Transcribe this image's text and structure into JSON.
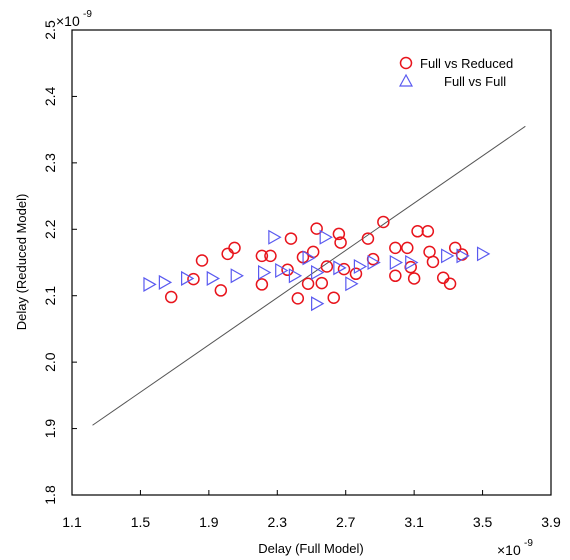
{
  "chart_data": {
    "type": "scatter",
    "xlabel": "Delay (Full Model)",
    "ylabel": "Delay (Reduced Model)",
    "xlim": [
      1.1,
      3.9
    ],
    "ylim": [
      1.8,
      2.5
    ],
    "xticks": [
      "1.1",
      "1.5",
      "1.9",
      "2.3",
      "2.7",
      "3.1",
      "3.5",
      "3.9"
    ],
    "yticks": [
      "1.8",
      "1.9",
      "2.0",
      "2.1",
      "2.2",
      "2.3",
      "2.4",
      "2.5"
    ],
    "x_multiplier": {
      "base": "×10",
      "exp": "-9"
    },
    "y_multiplier": {
      "base": "×10",
      "exp": "-9"
    },
    "grid": false,
    "legend_position": "top-right",
    "reference_line": {
      "x": [
        1.22,
        3.75
      ],
      "y": [
        1.905,
        2.355
      ]
    },
    "series": [
      {
        "name": "Full vs Reduced",
        "marker": "circle",
        "color": "#e8141c",
        "points": [
          [
            1.68,
            2.098
          ],
          [
            1.81,
            2.125
          ],
          [
            1.86,
            2.153
          ],
          [
            1.97,
            2.108
          ],
          [
            2.01,
            2.163
          ],
          [
            2.05,
            2.172
          ],
          [
            2.21,
            2.117
          ],
          [
            2.21,
            2.16
          ],
          [
            2.26,
            2.16
          ],
          [
            2.36,
            2.139
          ],
          [
            2.38,
            2.186
          ],
          [
            2.42,
            2.096
          ],
          [
            2.45,
            2.158
          ],
          [
            2.48,
            2.118
          ],
          [
            2.51,
            2.166
          ],
          [
            2.53,
            2.201
          ],
          [
            2.56,
            2.119
          ],
          [
            2.59,
            2.144
          ],
          [
            2.63,
            2.097
          ],
          [
            2.66,
            2.193
          ],
          [
            2.67,
            2.18
          ],
          [
            2.69,
            2.14
          ],
          [
            2.76,
            2.133
          ],
          [
            2.83,
            2.186
          ],
          [
            2.86,
            2.155
          ],
          [
            2.92,
            2.211
          ],
          [
            2.99,
            2.13
          ],
          [
            2.99,
            2.172
          ],
          [
            3.06,
            2.172
          ],
          [
            3.08,
            2.143
          ],
          [
            3.12,
            2.197
          ],
          [
            3.1,
            2.126
          ],
          [
            3.18,
            2.197
          ],
          [
            3.19,
            2.166
          ],
          [
            3.21,
            2.151
          ],
          [
            3.27,
            2.127
          ],
          [
            3.31,
            2.118
          ],
          [
            3.34,
            2.172
          ],
          [
            3.38,
            2.162
          ]
        ]
      },
      {
        "name": "Full vs Full",
        "marker": "triangle",
        "color": "#5a5af0",
        "points": [
          [
            1.55,
            2.117
          ],
          [
            1.64,
            2.12
          ],
          [
            1.77,
            2.126
          ],
          [
            1.92,
            2.126
          ],
          [
            2.06,
            2.13
          ],
          [
            2.22,
            2.135
          ],
          [
            2.28,
            2.188
          ],
          [
            2.32,
            2.138
          ],
          [
            2.4,
            2.13
          ],
          [
            2.48,
            2.157
          ],
          [
            2.53,
            2.088
          ],
          [
            2.53,
            2.135
          ],
          [
            2.58,
            2.188
          ],
          [
            2.66,
            2.142
          ],
          [
            2.73,
            2.118
          ],
          [
            2.78,
            2.144
          ],
          [
            2.86,
            2.15
          ],
          [
            2.99,
            2.15
          ],
          [
            3.08,
            2.15
          ],
          [
            3.29,
            2.16
          ],
          [
            3.38,
            2.16
          ],
          [
            3.5,
            2.163
          ]
        ]
      }
    ]
  }
}
